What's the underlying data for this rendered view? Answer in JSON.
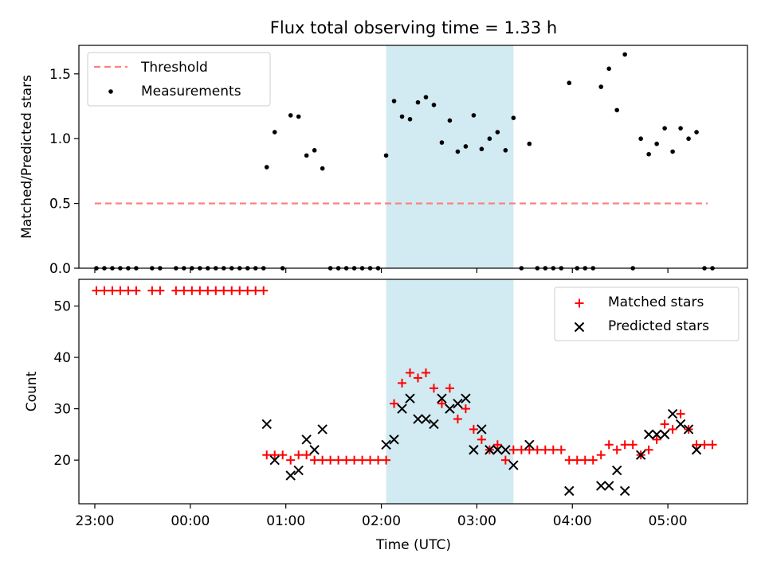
{
  "title": "Flux total observing time = 1.33 h",
  "colors": {
    "threshold": "#ff7f7f",
    "measurement": "#000000",
    "matched": "#ff0000",
    "predicted": "#000000",
    "shade": "#add8e6"
  },
  "chart_data": [
    {
      "type": "scatter",
      "panel": "top",
      "ylabel": "Matched/Predicted stars",
      "ylim": [
        0,
        1.72
      ],
      "yticks": [
        "0.0",
        "0.5",
        "1.0",
        "1.5"
      ],
      "ytick_values": [
        0,
        0.5,
        1.0,
        1.5
      ],
      "xlim": [
        "22:50",
        "05:50"
      ],
      "shaded_interval": [
        "02:03",
        "03:23"
      ],
      "legend": {
        "placement": "top-left",
        "entries": [
          "Threshold",
          "Measurements"
        ]
      },
      "threshold": {
        "name": "Threshold",
        "value": 0.5,
        "x": [
          "23:00",
          "05:25"
        ]
      },
      "measurements": {
        "name": "Measurements",
        "points": [
          [
            "23:01",
            0
          ],
          [
            "23:06",
            0
          ],
          [
            "23:11",
            0
          ],
          [
            "23:16",
            0
          ],
          [
            "23:21",
            0
          ],
          [
            "23:26",
            0
          ],
          [
            "23:36",
            0
          ],
          [
            "23:41",
            0
          ],
          [
            "23:51",
            0
          ],
          [
            "23:56",
            0
          ],
          [
            "00:01",
            0
          ],
          [
            "00:06",
            0
          ],
          [
            "00:11",
            0
          ],
          [
            "00:16",
            0
          ],
          [
            "00:21",
            0
          ],
          [
            "00:26",
            0
          ],
          [
            "00:31",
            0
          ],
          [
            "00:36",
            0
          ],
          [
            "00:41",
            0
          ],
          [
            "00:46",
            0
          ],
          [
            "00:48",
            0.78
          ],
          [
            "00:53",
            1.05
          ],
          [
            "00:58",
            0
          ],
          [
            "01:03",
            1.18
          ],
          [
            "01:08",
            1.17
          ],
          [
            "01:13",
            0.87
          ],
          [
            "01:18",
            0.91
          ],
          [
            "01:23",
            0.77
          ],
          [
            "01:28",
            0
          ],
          [
            "01:33",
            0
          ],
          [
            "01:38",
            0
          ],
          [
            "01:43",
            0
          ],
          [
            "01:48",
            0
          ],
          [
            "01:53",
            0
          ],
          [
            "01:58",
            0
          ],
          [
            "02:03",
            0.87
          ],
          [
            "02:08",
            1.29
          ],
          [
            "02:13",
            1.17
          ],
          [
            "02:18",
            1.15
          ],
          [
            "02:23",
            1.28
          ],
          [
            "02:28",
            1.32
          ],
          [
            "02:33",
            1.26
          ],
          [
            "02:38",
            0.97
          ],
          [
            "02:43",
            1.14
          ],
          [
            "02:48",
            0.9
          ],
          [
            "02:53",
            0.94
          ],
          [
            "02:58",
            1.18
          ],
          [
            "03:03",
            0.92
          ],
          [
            "03:08",
            1.0
          ],
          [
            "03:13",
            1.05
          ],
          [
            "03:18",
            0.91
          ],
          [
            "03:23",
            1.16
          ],
          [
            "03:28",
            0
          ],
          [
            "03:33",
            0.96
          ],
          [
            "03:38",
            0
          ],
          [
            "03:43",
            0
          ],
          [
            "03:48",
            0
          ],
          [
            "03:53",
            0
          ],
          [
            "03:58",
            1.43
          ],
          [
            "04:03",
            0
          ],
          [
            "04:08",
            0
          ],
          [
            "04:13",
            0
          ],
          [
            "04:18",
            1.4
          ],
          [
            "04:23",
            1.54
          ],
          [
            "04:28",
            1.22
          ],
          [
            "04:33",
            1.65
          ],
          [
            "04:38",
            0
          ],
          [
            "04:43",
            1.0
          ],
          [
            "04:48",
            0.88
          ],
          [
            "04:53",
            0.96
          ],
          [
            "04:58",
            1.08
          ],
          [
            "05:03",
            0.9
          ],
          [
            "05:08",
            1.08
          ],
          [
            "05:13",
            1.0
          ],
          [
            "05:18",
            1.05
          ],
          [
            "05:23",
            0
          ],
          [
            "05:28",
            0
          ]
        ]
      }
    },
    {
      "type": "scatter",
      "panel": "bottom",
      "xlabel": "Time (UTC)",
      "ylabel": "Count",
      "ylim": [
        11.5,
        55.2
      ],
      "yticks": [
        "20",
        "30",
        "40",
        "50"
      ],
      "ytick_values": [
        20,
        30,
        40,
        50
      ],
      "xlim": [
        "22:50",
        "05:50"
      ],
      "xticks": [
        "23:00",
        "00:00",
        "01:00",
        "02:00",
        "03:00",
        "04:00",
        "05:00"
      ],
      "shaded_interval": [
        "02:03",
        "03:23"
      ],
      "legend": {
        "placement": "top-right",
        "entries": [
          "Matched stars",
          "Predicted stars"
        ]
      },
      "matched": {
        "name": "Matched stars",
        "points": [
          [
            "23:01",
            53
          ],
          [
            "23:06",
            53
          ],
          [
            "23:11",
            53
          ],
          [
            "23:16",
            53
          ],
          [
            "23:21",
            53
          ],
          [
            "23:26",
            53
          ],
          [
            "23:36",
            53
          ],
          [
            "23:41",
            53
          ],
          [
            "23:51",
            53
          ],
          [
            "23:56",
            53
          ],
          [
            "00:01",
            53
          ],
          [
            "00:06",
            53
          ],
          [
            "00:11",
            53
          ],
          [
            "00:16",
            53
          ],
          [
            "00:21",
            53
          ],
          [
            "00:26",
            53
          ],
          [
            "00:31",
            53
          ],
          [
            "00:36",
            53
          ],
          [
            "00:41",
            53
          ],
          [
            "00:46",
            53
          ],
          [
            "00:48",
            21
          ],
          [
            "00:53",
            21
          ],
          [
            "00:58",
            21
          ],
          [
            "01:03",
            20
          ],
          [
            "01:08",
            21
          ],
          [
            "01:13",
            21
          ],
          [
            "01:18",
            20
          ],
          [
            "01:23",
            20
          ],
          [
            "01:28",
            20
          ],
          [
            "01:33",
            20
          ],
          [
            "01:38",
            20
          ],
          [
            "01:43",
            20
          ],
          [
            "01:48",
            20
          ],
          [
            "01:53",
            20
          ],
          [
            "01:58",
            20
          ],
          [
            "02:03",
            20
          ],
          [
            "02:08",
            31
          ],
          [
            "02:13",
            35
          ],
          [
            "02:18",
            37
          ],
          [
            "02:23",
            36
          ],
          [
            "02:28",
            37
          ],
          [
            "02:33",
            34
          ],
          [
            "02:38",
            31
          ],
          [
            "02:43",
            34
          ],
          [
            "02:48",
            28
          ],
          [
            "02:53",
            30
          ],
          [
            "02:58",
            26
          ],
          [
            "03:03",
            24
          ],
          [
            "03:08",
            22
          ],
          [
            "03:13",
            23
          ],
          [
            "03:18",
            20
          ],
          [
            "03:23",
            22
          ],
          [
            "03:28",
            22
          ],
          [
            "03:33",
            22
          ],
          [
            "03:38",
            22
          ],
          [
            "03:43",
            22
          ],
          [
            "03:48",
            22
          ],
          [
            "03:53",
            22
          ],
          [
            "03:58",
            20
          ],
          [
            "04:03",
            20
          ],
          [
            "04:08",
            20
          ],
          [
            "04:13",
            20
          ],
          [
            "04:18",
            21
          ],
          [
            "04:23",
            23
          ],
          [
            "04:28",
            22
          ],
          [
            "04:33",
            23
          ],
          [
            "04:38",
            23
          ],
          [
            "04:43",
            21
          ],
          [
            "04:48",
            22
          ],
          [
            "04:53",
            24
          ],
          [
            "04:58",
            27
          ],
          [
            "05:03",
            26
          ],
          [
            "05:08",
            29
          ],
          [
            "05:13",
            26
          ],
          [
            "05:18",
            23
          ],
          [
            "05:23",
            23
          ],
          [
            "05:28",
            23
          ]
        ]
      },
      "predicted": {
        "name": "Predicted stars",
        "points": [
          [
            "00:48",
            27
          ],
          [
            "00:53",
            20
          ],
          [
            "01:03",
            17
          ],
          [
            "01:08",
            18
          ],
          [
            "01:13",
            24
          ],
          [
            "01:18",
            22
          ],
          [
            "01:23",
            26
          ],
          [
            "02:03",
            23
          ],
          [
            "02:08",
            24
          ],
          [
            "02:13",
            30
          ],
          [
            "02:18",
            32
          ],
          [
            "02:23",
            28
          ],
          [
            "02:28",
            28
          ],
          [
            "02:33",
            27
          ],
          [
            "02:38",
            32
          ],
          [
            "02:43",
            30
          ],
          [
            "02:48",
            31
          ],
          [
            "02:53",
            32
          ],
          [
            "02:58",
            22
          ],
          [
            "03:03",
            26
          ],
          [
            "03:08",
            22
          ],
          [
            "03:13",
            22
          ],
          [
            "03:18",
            22
          ],
          [
            "03:23",
            19
          ],
          [
            "03:33",
            23
          ],
          [
            "03:58",
            14
          ],
          [
            "04:18",
            15
          ],
          [
            "04:23",
            15
          ],
          [
            "04:28",
            18
          ],
          [
            "04:33",
            14
          ],
          [
            "04:43",
            21
          ],
          [
            "04:48",
            25
          ],
          [
            "04:53",
            25
          ],
          [
            "04:58",
            25
          ],
          [
            "05:03",
            29
          ],
          [
            "05:08",
            27
          ],
          [
            "05:13",
            26
          ],
          [
            "05:18",
            22
          ]
        ]
      }
    }
  ]
}
